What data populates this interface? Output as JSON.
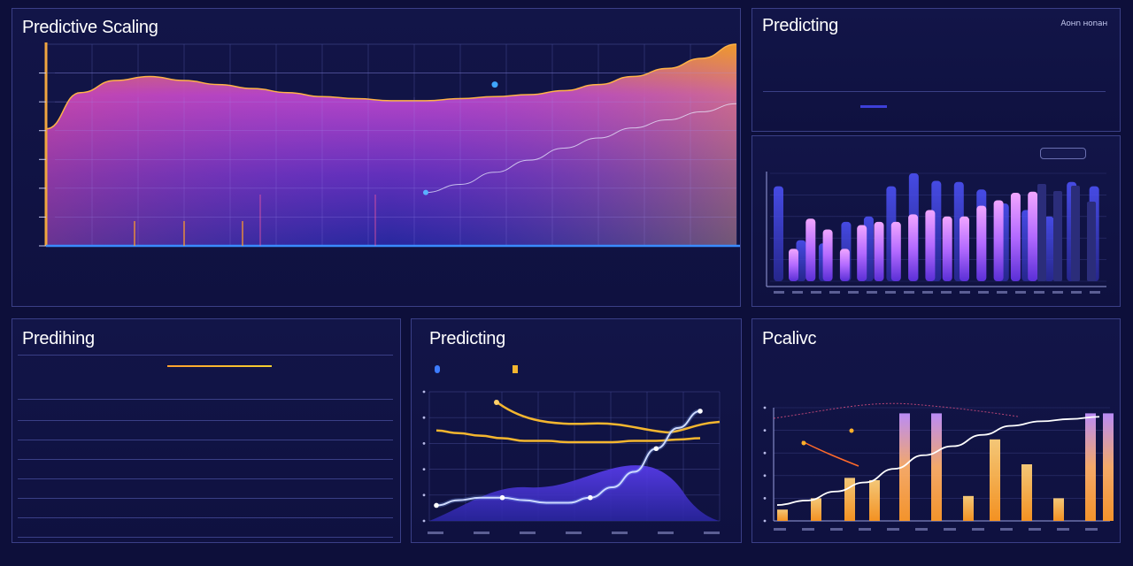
{
  "colors": {
    "background": "#0d0f3a",
    "panel_border": "#3a3f86",
    "accent_orange": "#ffa12e",
    "accent_magenta": "#b44be0",
    "accent_blue": "#3d3fd8",
    "accent_violet": "#8a5cff",
    "line_white": "#e8ecff",
    "line_yellow": "#f4b62f"
  },
  "main_panel": {
    "title": "Predictive Scaling",
    "x_tick_labels": [
      "",
      "",
      "",
      "",
      "",
      "",
      "",
      "",
      "",
      "",
      "",
      ""
    ],
    "y_tick_labels": [
      "",
      "",
      "",
      "",
      "",
      "",
      "",
      ""
    ],
    "footer_stats": [
      {
        "value": "",
        "label": ""
      },
      {
        "value": "",
        "label": ""
      },
      {
        "value": "",
        "label": ""
      },
      {
        "value": "",
        "label": ""
      },
      {
        "value": "",
        "label": ""
      },
      {
        "value": "",
        "label": ""
      },
      {
        "value": "",
        "label": ""
      },
      {
        "value": "",
        "label": ""
      }
    ]
  },
  "summary_panel": {
    "title": "Predicting",
    "corner_label": "Aонn ноnан",
    "columns": [
      "",
      "",
      "",
      "",
      "",
      "",
      ""
    ],
    "row_a": [
      "",
      "",
      "",
      "",
      "",
      "",
      ""
    ],
    "row_b": [
      "",
      "",
      "",
      "",
      "",
      "",
      ""
    ]
  },
  "bar_panel": {
    "header_label": "",
    "button_label": "",
    "side_label": ""
  },
  "table_panel": {
    "title": "Predihing",
    "legend_text": "",
    "rows": [
      [
        "",
        "",
        "",
        "",
        ""
      ],
      [
        "",
        "",
        "",
        "",
        ""
      ],
      [
        "",
        "",
        "",
        "",
        ""
      ],
      [
        "",
        "",
        "",
        "",
        ""
      ],
      [
        "",
        "",
        "",
        "",
        ""
      ],
      [
        "",
        "",
        "",
        "",
        ""
      ],
      [
        "",
        "",
        "",
        "",
        ""
      ],
      [
        "",
        "",
        "",
        "",
        ""
      ],
      [
        "",
        "",
        "",
        "",
        ""
      ]
    ]
  },
  "line_panel": {
    "title": "Predicting",
    "legend": [
      "",
      ""
    ]
  },
  "combo_panel": {
    "title": "Pcalivc",
    "subtitle": ""
  },
  "chart_data": [
    {
      "type": "area",
      "title": "Predictive Scaling",
      "x": [
        0,
        1,
        2,
        3,
        4,
        5,
        6,
        7,
        8,
        9,
        10,
        11,
        12,
        13,
        14,
        15,
        16,
        17,
        18,
        19,
        20
      ],
      "ylim": [
        0,
        100
      ],
      "series": [
        {
          "values": [
            58,
            76,
            82,
            84,
            82,
            80,
            78,
            76,
            74,
            73,
            72,
            72,
            73,
            74,
            75,
            77,
            80,
            84,
            88,
            93,
            100
          ]
        },
        {
          "values": [
            null,
            null,
            null,
            null,
            null,
            null,
            null,
            null,
            null,
            null,
            null,
            30,
            34,
            40,
            46,
            52,
            57,
            62,
            66,
            70,
            74
          ]
        }
      ],
      "grid": true
    },
    {
      "type": "bar",
      "ylim": [
        0,
        100
      ],
      "series": [
        {
          "values": [
            88,
            38,
            35,
            55,
            60,
            88,
            100,
            93,
            92,
            85,
            72,
            66,
            60,
            92,
            88
          ]
        },
        {
          "values": [
            30,
            58,
            48,
            30,
            52,
            55,
            55,
            62,
            66,
            60,
            60,
            70,
            75,
            82,
            83,
            80,
            80,
            75,
            72,
            70
          ]
        }
      ]
    },
    {
      "type": "line",
      "title": "Predicting",
      "x": [
        0,
        1,
        2,
        3,
        4,
        5,
        6,
        7,
        8,
        9,
        10,
        11,
        12
      ],
      "ylim": [
        0,
        100
      ],
      "series": [
        {
          "values": [
            70,
            68,
            66,
            64,
            62,
            62,
            61,
            61,
            61,
            62,
            62,
            63,
            64
          ]
        },
        {
          "values": [
            12,
            16,
            18,
            18,
            16,
            14,
            14,
            18,
            26,
            38,
            56,
            72,
            85
          ]
        }
      ]
    },
    {
      "type": "bar",
      "title": "Pcalivc",
      "categories": [
        "",
        "",
        "",
        "",
        "",
        "",
        "",
        "",
        "",
        "",
        "",
        ""
      ],
      "ylim": [
        0,
        100
      ],
      "series": [
        {
          "values": [
            10,
            20,
            38,
            36,
            95,
            95,
            22,
            72,
            50,
            20,
            95,
            95
          ]
        },
        {
          "values": [
            14,
            18,
            26,
            34,
            46,
            58,
            66,
            76,
            84,
            88,
            90,
            92
          ]
        }
      ]
    }
  ]
}
